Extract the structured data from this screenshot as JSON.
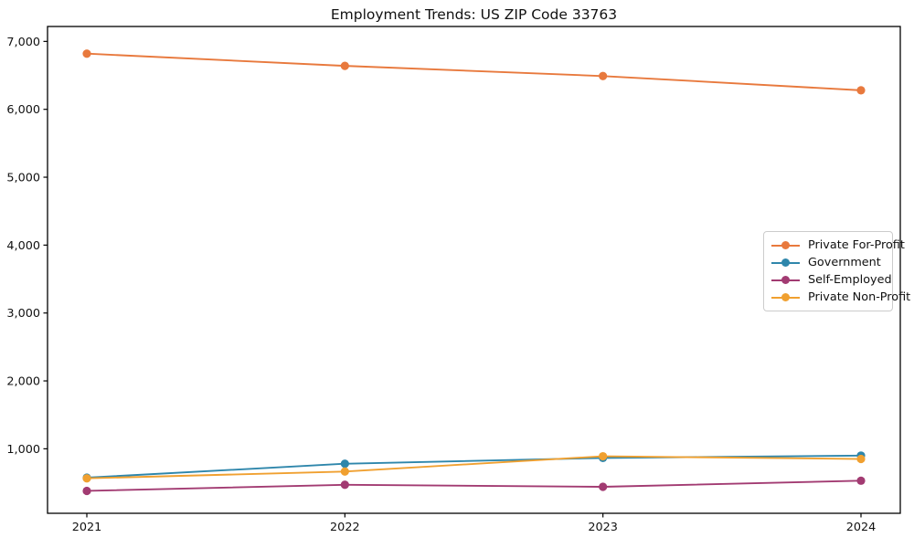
{
  "chart_data": {
    "type": "line",
    "title": "Employment Trends: US ZIP Code 33763",
    "xlabel": "",
    "ylabel": "",
    "categories": [
      "2021",
      "2022",
      "2023",
      "2024"
    ],
    "series": [
      {
        "name": "Private For-Profit",
        "color": "#e8793d",
        "values": [
          6820,
          6640,
          6490,
          6280
        ]
      },
      {
        "name": "Government",
        "color": "#2e86ab",
        "values": [
          575,
          780,
          865,
          900
        ]
      },
      {
        "name": "Self-Employed",
        "color": "#a23b72",
        "values": [
          380,
          470,
          440,
          530
        ]
      },
      {
        "name": "Private Non-Profit",
        "color": "#f0a030",
        "values": [
          565,
          665,
          890,
          850
        ]
      }
    ],
    "yticks": [
      1000,
      2000,
      3000,
      4000,
      5000,
      6000,
      7000
    ],
    "ytick_labels": [
      "1,000",
      "2,000",
      "3,000",
      "4,000",
      "5,000",
      "6,000",
      "7,000"
    ],
    "ylim": [
      50,
      7220
    ],
    "grid": false,
    "legend_position": "center right",
    "axis_color": "#000000",
    "tick_label_color": "#111111",
    "background_color": "#ffffff"
  }
}
